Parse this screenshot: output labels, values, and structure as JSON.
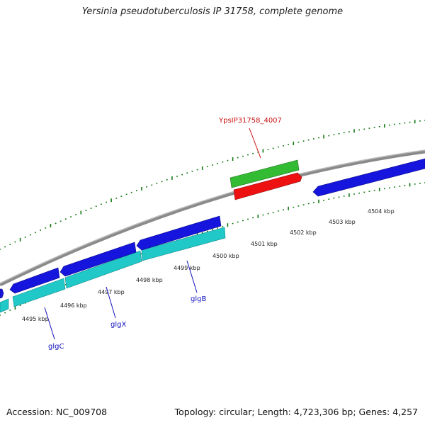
{
  "title": "Yersinia pseudotuberculosis IP 31758, complete genome",
  "footer": {
    "accession": "Accession: NC_009708",
    "summary": "Topology: circular; Length: 4,723,306 bp; Genes: 4,257"
  },
  "colors": {
    "backbone": "#8a8a8a",
    "forward_cds": "#1515dd",
    "cyan_feature": "#20c8c8",
    "green_feature": "#33bb33",
    "red_feature": "#ee1111",
    "tick": "#117711",
    "gene_label": "#1111bb",
    "highlight_label": "#cc1111"
  },
  "kbp_labels": [
    "4495 kbp",
    "4496 kbp",
    "4497 kbp",
    "4498 kbp",
    "4499 kbp",
    "4500 kbp",
    "4501 kbp",
    "4502 kbp",
    "4503 kbp",
    "4504 kbp"
  ],
  "gene_labels": {
    "glgC": "glgC",
    "glgX": "glgX",
    "glgB": "glgB",
    "highlight": "YpsIP31758_4007"
  }
}
